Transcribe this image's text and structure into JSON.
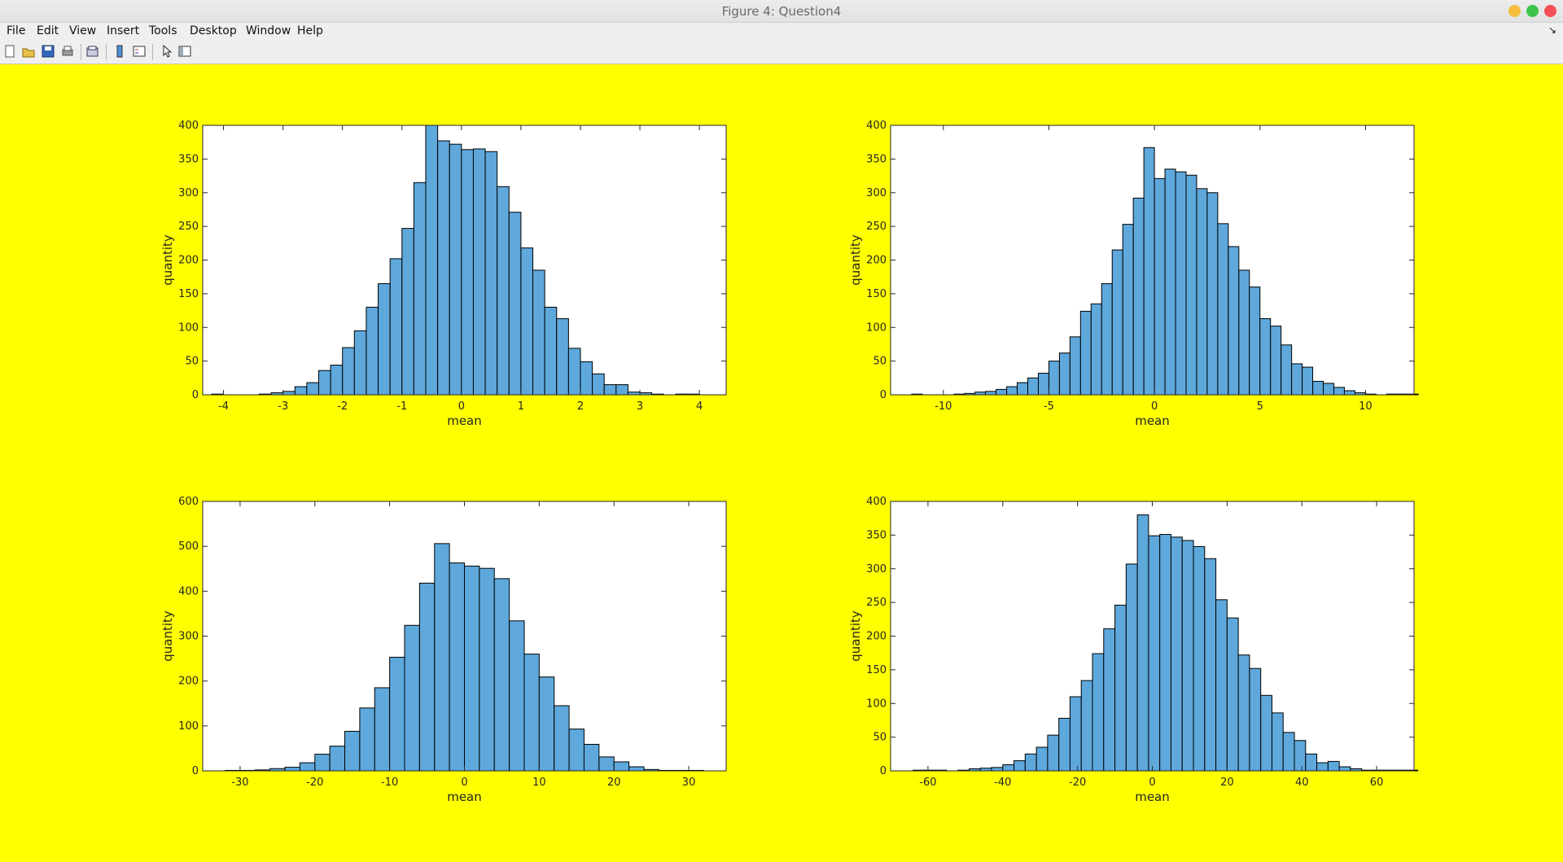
{
  "window": {
    "title": "Figure 4: Question4"
  },
  "menu": [
    "File",
    "Edit",
    "View",
    "Insert",
    "Tools",
    "Desktop",
    "Window",
    "Help"
  ],
  "toolbar_icons": [
    "new-figure-icon",
    "open-file-icon",
    "save-icon",
    "print-icon",
    "print-preview-icon",
    "colorbar-icon",
    "legend-icon",
    "pointer-icon",
    "property-editor-icon"
  ],
  "colors": {
    "figure_background": "#ffff00",
    "bar_fill": "#5ea8dc",
    "bar_edge": "#000000"
  },
  "chart_data": [
    {
      "type": "bar",
      "xlabel": "mean",
      "ylabel": "quantity",
      "xlim": [
        -4.35,
        4.45
      ],
      "ylim": [
        0,
        400
      ],
      "xticks": [
        -4,
        -3,
        -2,
        -1,
        0,
        1,
        2,
        3,
        4
      ],
      "yticks": [
        0,
        50,
        100,
        150,
        200,
        250,
        300,
        350,
        400
      ],
      "bin_start": -4.2,
      "bin_width": 0.2,
      "counts": [
        1,
        0,
        0,
        0,
        1,
        3,
        5,
        12,
        18,
        36,
        44,
        70,
        95,
        130,
        165,
        202,
        247,
        315,
        400,
        377,
        372,
        364,
        365,
        361,
        309,
        271,
        218,
        185,
        130,
        113,
        69,
        49,
        31,
        15,
        15,
        4,
        3,
        1,
        0,
        1,
        1,
        0
      ]
    },
    {
      "type": "bar",
      "xlabel": "mean",
      "ylabel": "quantity",
      "xlim": [
        -12.5,
        12.3
      ],
      "ylim": [
        0,
        400
      ],
      "xticks": [
        -10,
        -5,
        0,
        5,
        10
      ],
      "yticks": [
        0,
        50,
        100,
        150,
        200,
        250,
        300,
        350,
        400
      ],
      "bin_start": -11.5,
      "bin_width": 0.5,
      "counts": [
        1,
        0,
        0,
        0,
        1,
        2,
        4,
        5,
        8,
        12,
        18,
        25,
        32,
        50,
        62,
        86,
        124,
        135,
        165,
        215,
        253,
        292,
        367,
        321,
        335,
        331,
        326,
        306,
        300,
        254,
        220,
        185,
        160,
        113,
        102,
        74,
        46,
        41,
        20,
        17,
        11,
        6,
        3,
        1,
        0,
        1,
        1,
        1
      ]
    },
    {
      "type": "bar",
      "xlabel": "mean",
      "ylabel": "quantity",
      "xlim": [
        -35,
        35
      ],
      "ylim": [
        0,
        600
      ],
      "xticks": [
        -30,
        -20,
        -10,
        0,
        10,
        20,
        30
      ],
      "yticks": [
        0,
        100,
        200,
        300,
        400,
        500,
        600
      ],
      "bin_start": -32,
      "bin_width": 2,
      "counts": [
        1,
        1,
        2,
        5,
        8,
        18,
        37,
        55,
        88,
        140,
        185,
        253,
        324,
        418,
        506,
        463,
        456,
        451,
        428,
        334,
        260,
        209,
        145,
        93,
        59,
        31,
        20,
        9,
        3,
        1,
        1,
        1
      ]
    },
    {
      "type": "bar",
      "xlabel": "mean",
      "ylabel": "quantity",
      "xlim": [
        -70,
        70
      ],
      "ylim": [
        0,
        400
      ],
      "xticks": [
        -60,
        -40,
        -20,
        0,
        20,
        40,
        60
      ],
      "yticks": [
        0,
        50,
        100,
        150,
        200,
        250,
        300,
        350,
        400
      ],
      "bin_start": -64,
      "bin_width": 3,
      "counts": [
        1,
        1,
        1,
        0,
        1,
        3,
        4,
        5,
        9,
        15,
        25,
        35,
        53,
        78,
        110,
        134,
        174,
        211,
        246,
        307,
        380,
        349,
        351,
        347,
        342,
        333,
        315,
        254,
        227,
        172,
        152,
        112,
        86,
        57,
        45,
        25,
        12,
        14,
        6,
        3,
        1,
        1,
        1,
        1,
        1
      ]
    }
  ]
}
